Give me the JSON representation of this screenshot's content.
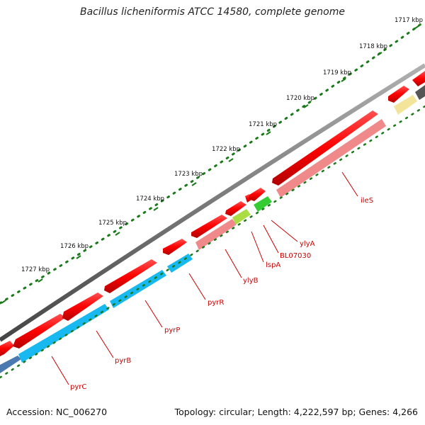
{
  "title": "Bacillus licheniformis ATCC 14580, complete genome",
  "footer": {
    "accession": "Accession: NC_006270",
    "summary": "Topology: circular; Length: 4,222,597 bp; Genes: 4,266"
  },
  "colors": {
    "backbone": "#7a7a7a",
    "cds": "#ff0000",
    "gene_pink": "#f08a8a",
    "gene_blue": "#18b8f0",
    "gene_green": "#33cc33",
    "gene_lime": "#aadd44",
    "gene_yellow": "#f2e59a",
    "gene_dark": "#555555",
    "tick": "#1a7a1a",
    "label": "#cc0000"
  },
  "ruler": [
    {
      "label": "1717 kbp"
    },
    {
      "label": "1718 kbp"
    },
    {
      "label": "1719 kbp"
    },
    {
      "label": "1720 kbp"
    },
    {
      "label": "1721 kbp"
    },
    {
      "label": "1722 kbp"
    },
    {
      "label": "1723 kbp"
    },
    {
      "label": "1724 kbp"
    },
    {
      "label": "1725 kbp"
    },
    {
      "label": "1726 kbp"
    },
    {
      "label": "1727 kbp"
    }
  ],
  "gene_labels": [
    "ileS",
    "ylyA",
    "BL07030",
    "lspA",
    "ylyB",
    "pyrR",
    "pyrP",
    "pyrB",
    "pyrC"
  ]
}
